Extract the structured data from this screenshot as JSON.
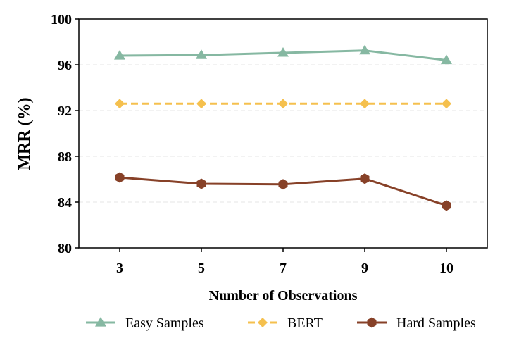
{
  "chart_data": {
    "type": "line",
    "xlabel": "Number of Observations",
    "ylabel": "MRR (%)",
    "categories": [
      "3",
      "5",
      "7",
      "9",
      "10"
    ],
    "ylim": [
      80,
      100
    ],
    "yticks": [
      "80",
      "84",
      "88",
      "92",
      "96",
      "100"
    ],
    "grid": "horizontal dashed",
    "legend_position": "bottom",
    "series": [
      {
        "name": "Easy Samples",
        "values": [
          96.8,
          96.85,
          97.05,
          97.25,
          96.4
        ],
        "color": "#86b8a2",
        "marker": "triangle",
        "dash": "solid"
      },
      {
        "name": "BERT",
        "values": [
          92.6,
          92.6,
          92.6,
          92.6,
          92.6
        ],
        "color": "#f5c04e",
        "marker": "diamond",
        "dash": "dashed"
      },
      {
        "name": "Hard Samples",
        "values": [
          86.15,
          85.6,
          85.55,
          86.05,
          83.7
        ],
        "color": "#874128",
        "marker": "hexagon",
        "dash": "solid"
      }
    ]
  }
}
